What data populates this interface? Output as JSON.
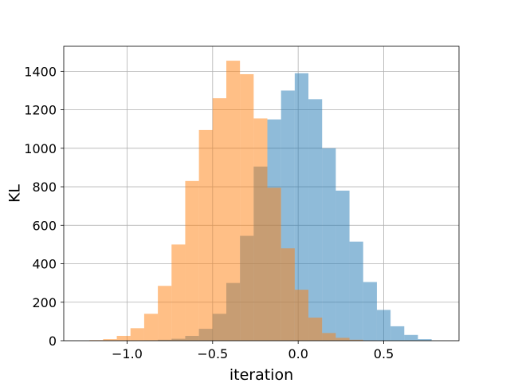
{
  "chart_data": {
    "type": "histogram",
    "title": "",
    "xlabel": "iteration",
    "ylabel": "KL",
    "xlim": [
      -1.37,
      0.94
    ],
    "ylim": [
      0,
      1530
    ],
    "grid": true,
    "xticks": [
      -1.0,
      -0.5,
      0.0,
      0.5
    ],
    "xtick_labels": [
      "−1.0",
      "−0.5",
      "0.0",
      "0.5"
    ],
    "yticks": [
      0,
      200,
      400,
      600,
      800,
      1000,
      1200,
      1400
    ],
    "ytick_labels": [
      "0",
      "200",
      "400",
      "600",
      "800",
      "1000",
      "1200",
      "1400"
    ],
    "colors": {
      "series1": "#1f77b4",
      "series2": "#ff7f0e",
      "opacity": 0.5
    },
    "series": [
      {
        "color": "#1f77b4",
        "bin_edges": [
          -0.9,
          -0.82,
          -0.74,
          -0.66,
          -0.58,
          -0.5,
          -0.42,
          -0.34,
          -0.26,
          -0.18,
          -0.1,
          -0.02,
          0.06,
          0.14,
          0.22,
          0.3,
          0.38,
          0.46,
          0.54,
          0.62,
          0.7,
          0.78
        ],
        "counts": [
          2,
          5,
          10,
          25,
          62,
          140,
          300,
          545,
          905,
          1150,
          1300,
          1390,
          1255,
          1000,
          780,
          515,
          305,
          160,
          75,
          30,
          8
        ]
      },
      {
        "color": "#ff7f0e",
        "bin_edges": [
          -1.22,
          -1.14,
          -1.06,
          -0.98,
          -0.9,
          -0.82,
          -0.74,
          -0.66,
          -0.58,
          -0.5,
          -0.42,
          -0.34,
          -0.26,
          -0.18,
          -0.1,
          -0.02,
          0.06,
          0.14,
          0.22,
          0.3,
          0.38,
          0.46
        ],
        "counts": [
          3,
          8,
          25,
          65,
          140,
          285,
          500,
          830,
          1095,
          1260,
          1455,
          1385,
          1155,
          795,
          480,
          265,
          120,
          40,
          15,
          5,
          1
        ]
      }
    ]
  }
}
